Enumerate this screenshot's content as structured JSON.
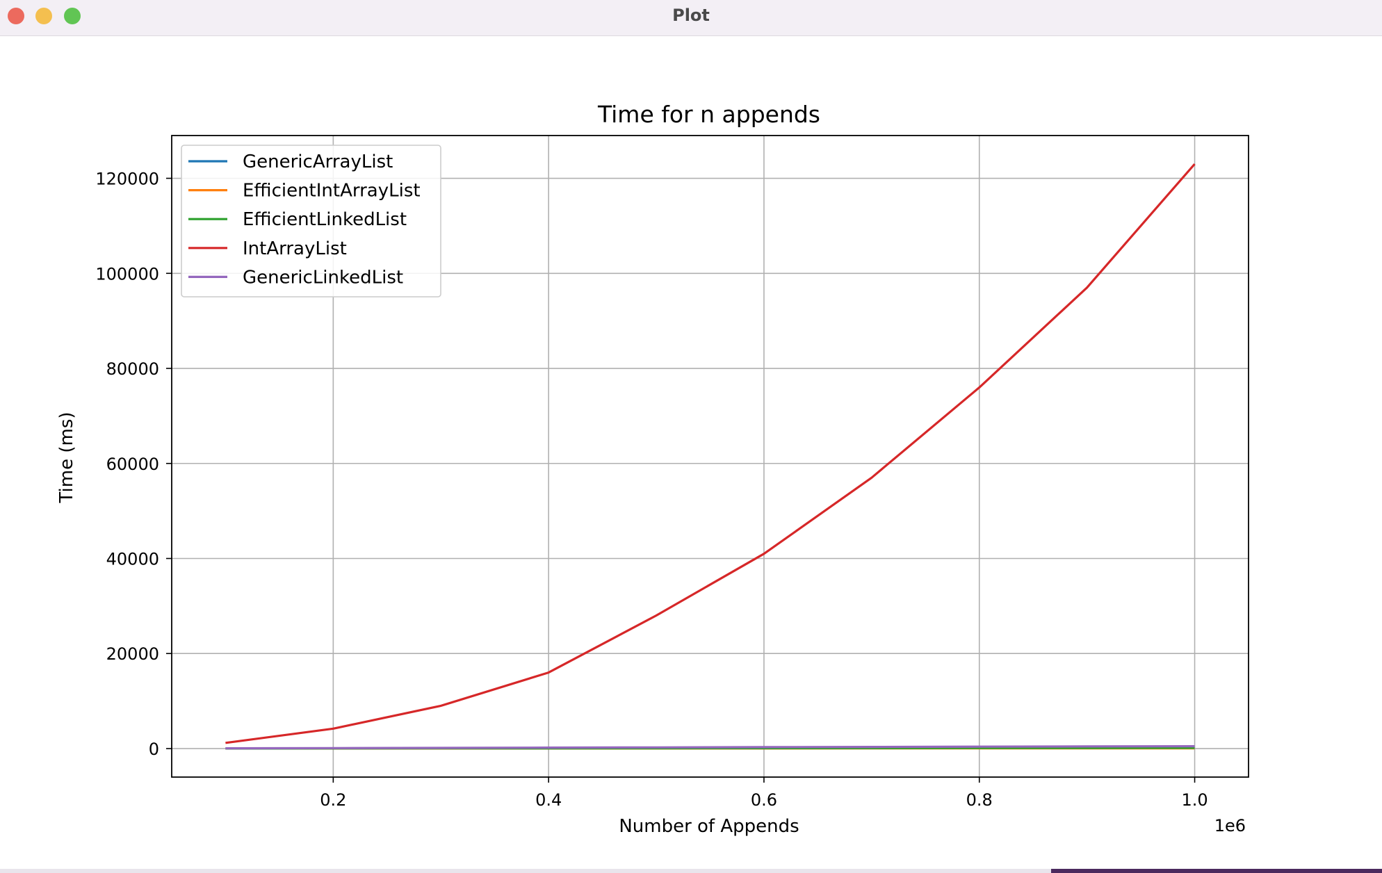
{
  "window": {
    "title": "Plot"
  },
  "chart_data": {
    "type": "line",
    "title": "Time for n appends",
    "xlabel": "Number of Appends",
    "ylabel": "Time (ms)",
    "x_offset_label": "1e6",
    "x": [
      100000,
      200000,
      300000,
      400000,
      500000,
      600000,
      700000,
      800000,
      900000,
      1000000
    ],
    "xlim": [
      50000,
      1050000
    ],
    "ylim": [
      -6000,
      129000
    ],
    "x_ticks": [
      200000,
      400000,
      600000,
      800000,
      1000000
    ],
    "x_tick_labels": [
      "0.2",
      "0.4",
      "0.6",
      "0.8",
      "1.0"
    ],
    "y_ticks": [
      0,
      20000,
      40000,
      60000,
      80000,
      100000,
      120000
    ],
    "y_tick_labels": [
      "0",
      "20000",
      "40000",
      "60000",
      "80000",
      "100000",
      "120000"
    ],
    "grid": true,
    "legend_position": "top-left",
    "series": [
      {
        "name": "GenericArrayList",
        "color": "#1f77b4",
        "values": [
          10,
          20,
          30,
          40,
          50,
          60,
          70,
          80,
          90,
          100
        ]
      },
      {
        "name": "EfficientIntArrayList",
        "color": "#ff7f0e",
        "values": [
          5,
          10,
          15,
          20,
          25,
          30,
          35,
          40,
          45,
          50
        ]
      },
      {
        "name": "EfficientLinkedList",
        "color": "#2ca02c",
        "values": [
          15,
          30,
          45,
          60,
          75,
          90,
          105,
          120,
          135,
          150
        ]
      },
      {
        "name": "IntArrayList",
        "color": "#d62728",
        "values": [
          1200,
          4200,
          9000,
          16000,
          28000,
          41000,
          57000,
          76000,
          97000,
          123000
        ]
      },
      {
        "name": "GenericLinkedList",
        "color": "#9467bd",
        "values": [
          50,
          100,
          150,
          200,
          250,
          300,
          350,
          400,
          450,
          500
        ]
      }
    ]
  }
}
